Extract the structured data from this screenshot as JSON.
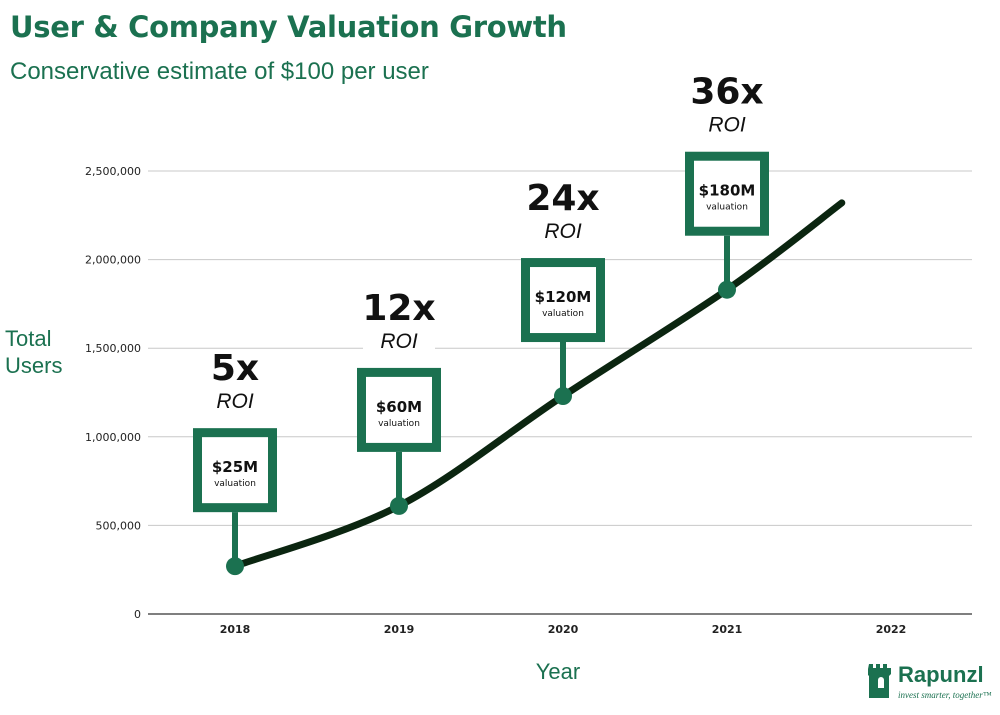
{
  "chart_data": {
    "type": "line",
    "title": "User & Company Valuation Growth",
    "subtitle": "Conservative estimate of $100 per user",
    "xlabel": "Year",
    "ylabel": "Total Users",
    "categories": [
      "2018",
      "2019",
      "2020",
      "2021",
      "2022"
    ],
    "ylim": [
      0,
      2500000
    ],
    "yticks": [
      0,
      500000,
      1000000,
      1500000,
      2000000,
      2500000
    ],
    "ytick_labels": [
      "0",
      "500,000",
      "1,000,000",
      "1,500,000",
      "2,000,000",
      "2,500,000"
    ],
    "grid": true,
    "series": [
      {
        "x": [
          "2018",
          "2019",
          "2020",
          "2021"
        ],
        "values": [
          270000,
          610000,
          1230000,
          1830000
        ],
        "color": "#0b2510"
      }
    ],
    "curve_end": {
      "x": 2021.7,
      "y": 2320000
    },
    "annotations": [
      {
        "year": "2018",
        "users": 270000,
        "roi": "5x",
        "roi_label": "ROI",
        "valuation": "$25M",
        "valuation_label": "valuation"
      },
      {
        "year": "2019",
        "users": 610000,
        "roi": "12x",
        "roi_label": "ROI",
        "valuation": "$60M",
        "valuation_label": "valuation"
      },
      {
        "year": "2020",
        "users": 1230000,
        "roi": "24x",
        "roi_label": "ROI",
        "valuation": "$120M",
        "valuation_label": "valuation"
      },
      {
        "year": "2021",
        "users": 1830000,
        "roi": "36x",
        "roi_label": "ROI",
        "valuation": "$180M",
        "valuation_label": "valuation"
      }
    ],
    "colors": {
      "accent": "#1b7150",
      "line": "#0b2510",
      "grid": "#c8c8c8"
    }
  },
  "logo": {
    "name": "Rapunzl",
    "tagline": "invest smarter, together™",
    "icon": "tower-icon"
  }
}
